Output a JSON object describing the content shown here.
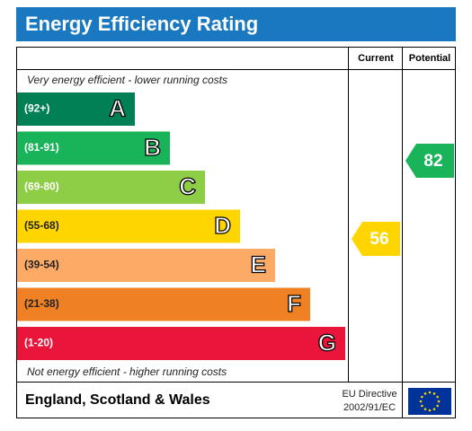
{
  "chart_data": {
    "type": "epc",
    "title": "Energy Efficiency Rating",
    "top_note": "Very energy efficient - lower running costs",
    "bottom_note": "Not energy efficient - higher running costs",
    "bands": [
      {
        "range": "(92+)",
        "letter": "A",
        "color": "#008054"
      },
      {
        "range": "(81-91)",
        "letter": "B",
        "color": "#19b459"
      },
      {
        "range": "(69-80)",
        "letter": "C",
        "color": "#8dce46"
      },
      {
        "range": "(55-68)",
        "letter": "D",
        "color": "#ffd500"
      },
      {
        "range": "(39-54)",
        "letter": "E",
        "color": "#fcaa65"
      },
      {
        "range": "(21-38)",
        "letter": "F",
        "color": "#ef8023"
      },
      {
        "range": "(1-20)",
        "letter": "G",
        "color": "#e9153b"
      }
    ],
    "series": [
      {
        "name": "Current",
        "value": 56
      },
      {
        "name": "Potential",
        "value": 82
      }
    ],
    "footer": {
      "region": "England, Scotland & Wales",
      "directive_line1": "EU Directive",
      "directive_line2": "2002/91/EC"
    }
  }
}
